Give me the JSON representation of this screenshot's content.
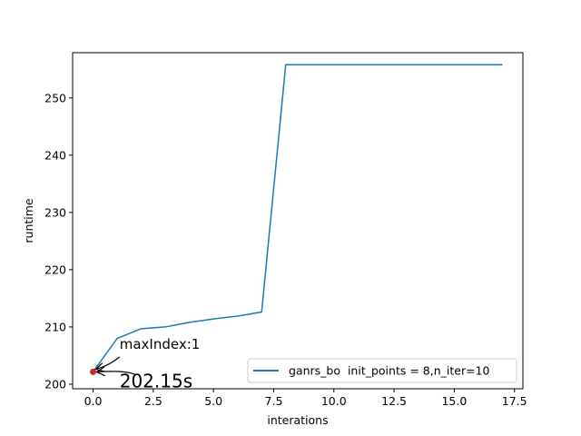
{
  "chart_data": {
    "type": "line",
    "title": "",
    "xlabel": "interations",
    "ylabel": "runtime",
    "xlim": [
      -0.85,
      17.85
    ],
    "ylim": [
      199.2,
      257.9
    ],
    "xticks": [
      0.0,
      2.5,
      5.0,
      7.5,
      10.0,
      12.5,
      15.0,
      17.5
    ],
    "xtick_labels": [
      "0.0",
      "2.5",
      "5.0",
      "7.5",
      "10.0",
      "12.5",
      "15.0",
      "17.5"
    ],
    "yticks": [
      200,
      210,
      220,
      230,
      240,
      250
    ],
    "ytick_labels": [
      "200",
      "210",
      "220",
      "230",
      "240",
      "250"
    ],
    "grid": false,
    "legend_position": "lower-right",
    "series": [
      {
        "name": "ganrs_bo  init_points = 8,n_iter=10",
        "color": "#1f77b4",
        "x": [
          0,
          1,
          2,
          3,
          4,
          5,
          6,
          7,
          8,
          9,
          10,
          11,
          12,
          13,
          14,
          15,
          16,
          17
        ],
        "y": [
          202.15,
          208.0,
          209.7,
          210.0,
          210.8,
          211.4,
          211.9,
          212.6,
          255.8,
          255.8,
          255.8,
          255.8,
          255.8,
          255.8,
          255.8,
          255.8,
          255.8,
          255.8
        ]
      }
    ],
    "marker": {
      "x": 0,
      "y": 202.15,
      "color": "#d62728"
    },
    "annotations": [
      {
        "text": "maxIndex:1",
        "x": 1.1,
        "y": 206.2,
        "arrow_to": [
          0,
          202.15
        ]
      },
      {
        "text": "202.15s",
        "x": 1.1,
        "y": 199.4,
        "arrow_to": [
          0,
          202.15
        ]
      }
    ]
  }
}
